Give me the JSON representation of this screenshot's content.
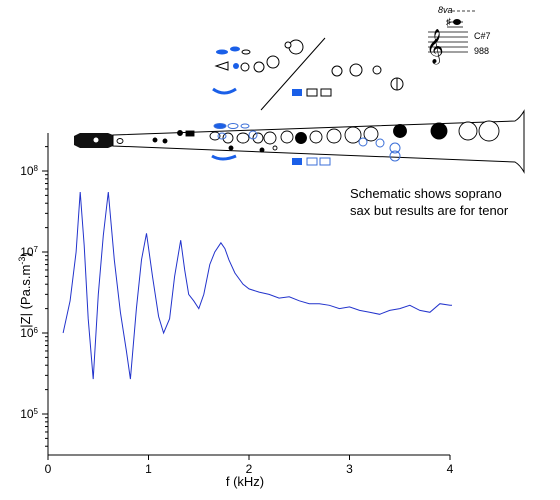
{
  "chart_data": {
    "type": "line",
    "title": "",
    "xlabel": "f (kHz)",
    "ylabel_main": "|Z| (Pa.s.m",
    "ylabel_sup": "-3",
    "ylabel_tail": ")",
    "xlim": [
      0,
      4
    ],
    "ylim": [
      30000,
      200000000
    ],
    "yscale": "log",
    "x_ticks": [
      0,
      1,
      2,
      3,
      4
    ],
    "x_tick_labels": [
      "0",
      "1",
      "2",
      "3",
      "4"
    ],
    "y_ticks": [
      100000,
      1000000,
      10000000,
      100000000
    ],
    "y_tick_labels": [
      {
        "base": "10",
        "exp": "5"
      },
      {
        "base": "10",
        "exp": "6"
      },
      {
        "base": "10",
        "exp": "7"
      },
      {
        "base": "10",
        "exp": "8"
      }
    ],
    "grid": false,
    "series": [
      {
        "color": "#2233cc",
        "x": [
          0.15,
          0.22,
          0.28,
          0.32,
          0.36,
          0.4,
          0.45,
          0.5,
          0.55,
          0.6,
          0.66,
          0.72,
          0.78,
          0.82,
          0.88,
          0.93,
          0.98,
          1.04,
          1.1,
          1.15,
          1.21,
          1.26,
          1.32,
          1.36,
          1.4,
          1.45,
          1.5,
          1.55,
          1.61,
          1.66,
          1.72,
          1.76,
          1.8,
          1.86,
          1.94,
          2.0,
          2.1,
          2.2,
          2.3,
          2.4,
          2.5,
          2.6,
          2.7,
          2.8,
          2.9,
          3.0,
          3.1,
          3.2,
          3.3,
          3.4,
          3.5,
          3.6,
          3.7,
          3.8,
          3.9,
          4.0,
          4.02
        ],
        "y": [
          1000000,
          2500000,
          10000000,
          55000000,
          12000000,
          1500000,
          270000,
          3000000,
          16000000,
          55000000,
          8000000,
          1800000,
          600000,
          270000,
          2000000,
          8000000,
          17000000,
          5000000,
          1600000,
          1000000,
          1500000,
          5000000,
          14000000,
          6000000,
          3000000,
          2500000,
          2000000,
          3000000,
          7000000,
          10000000,
          13000000,
          11000000,
          8000000,
          5500000,
          4000000,
          3500000,
          3200000,
          3000000,
          2700000,
          2800000,
          2500000,
          2300000,
          2300000,
          2200000,
          2000000,
          2100000,
          1900000,
          1800000,
          1700000,
          1900000,
          2000000,
          2200000,
          1900000,
          1800000,
          2300000,
          2200000,
          2200000
        ]
      }
    ],
    "annotation_lines": [
      "Schematic shows soprano",
      "sax but results are for tenor"
    ]
  },
  "note_inset": {
    "octave_marking": "8va",
    "note_name": "C#7",
    "frequency": "988"
  },
  "colors": {
    "curve": "#2233cc",
    "key_blue": "#1a5fe8",
    "key_outline_blue": "#3b6fd8",
    "axis": "#000000"
  }
}
